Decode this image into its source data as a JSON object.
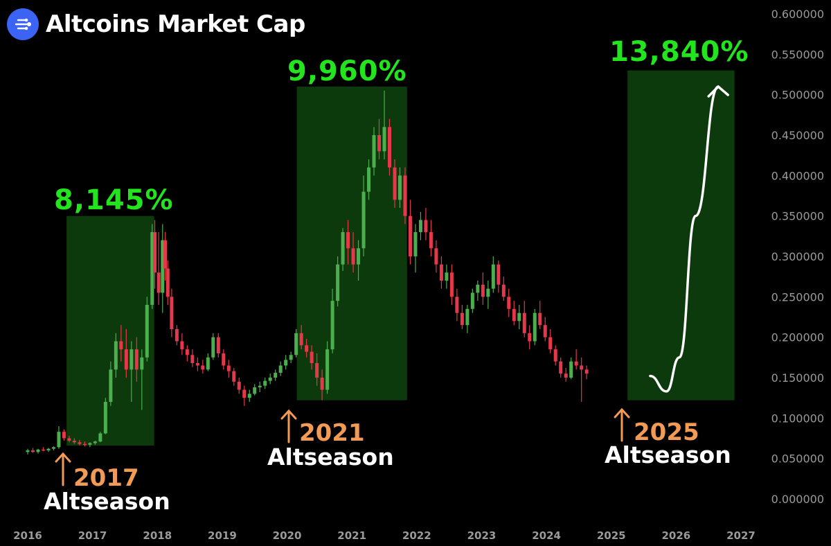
{
  "chart_data": {
    "type": "candlestick",
    "title": "Altcoins Market Cap",
    "ylim": [
      0.0,
      0.6
    ],
    "y_ticks": [
      "0.600000",
      "0.550000",
      "0.500000",
      "0.450000",
      "0.400000",
      "0.350000",
      "0.300000",
      "0.250000",
      "0.200000",
      "0.150000",
      "0.100000",
      "0.050000",
      "0.000000"
    ],
    "x_ticks": [
      "2016",
      "2017",
      "2018",
      "2019",
      "2020",
      "2021",
      "2022",
      "2023",
      "2024",
      "2025",
      "2026",
      "2027"
    ],
    "grid": false,
    "colors": {
      "up": "#4cae4f",
      "down": "#e5384a",
      "highlight": "#0c3a0c",
      "gain": "#22e51e",
      "year": "#f39a54",
      "label": "#ffffff",
      "axis": "#9a9a9a"
    },
    "highlight_periods": [
      {
        "start": 2016.6,
        "end": 2017.95,
        "low": 0.066,
        "high": 0.35
      },
      {
        "start": 2020.15,
        "end": 2021.85,
        "low": 0.122,
        "high": 0.51
      },
      {
        "start": 2025.25,
        "end": 2026.9,
        "low": 0.122,
        "high": 0.53
      }
    ],
    "annotations": [
      {
        "gain": "8,145%",
        "year": "2017",
        "label": "Altseason"
      },
      {
        "gain": "9,960%",
        "year": "2021",
        "label": "Altseason"
      },
      {
        "gain": "13,840%",
        "year": "2025",
        "label": "Altseason"
      }
    ],
    "projection": [
      [
        2025.6,
        0.152
      ],
      [
        2025.85,
        0.133
      ],
      [
        2026.05,
        0.175
      ],
      [
        2026.3,
        0.35
      ],
      [
        2026.65,
        0.51
      ]
    ],
    "candles": [
      [
        2016.0,
        0.058,
        0.062,
        0.055,
        0.06
      ],
      [
        2016.08,
        0.06,
        0.063,
        0.057,
        0.058
      ],
      [
        2016.16,
        0.058,
        0.062,
        0.056,
        0.061
      ],
      [
        2016.24,
        0.061,
        0.064,
        0.059,
        0.06
      ],
      [
        2016.32,
        0.06,
        0.063,
        0.058,
        0.062
      ],
      [
        2016.4,
        0.062,
        0.065,
        0.06,
        0.064
      ],
      [
        2016.48,
        0.064,
        0.09,
        0.062,
        0.083
      ],
      [
        2016.56,
        0.083,
        0.086,
        0.072,
        0.075
      ],
      [
        2016.64,
        0.075,
        0.078,
        0.07,
        0.072
      ],
      [
        2016.72,
        0.072,
        0.075,
        0.068,
        0.07
      ],
      [
        2016.8,
        0.07,
        0.073,
        0.066,
        0.068
      ],
      [
        2016.88,
        0.068,
        0.071,
        0.065,
        0.067
      ],
      [
        2016.96,
        0.067,
        0.07,
        0.064,
        0.069
      ],
      [
        2017.04,
        0.069,
        0.072,
        0.067,
        0.071
      ],
      [
        2017.12,
        0.071,
        0.083,
        0.07,
        0.081
      ],
      [
        2017.2,
        0.081,
        0.125,
        0.08,
        0.12
      ],
      [
        2017.28,
        0.12,
        0.17,
        0.115,
        0.16
      ],
      [
        2017.36,
        0.16,
        0.205,
        0.15,
        0.195
      ],
      [
        2017.44,
        0.195,
        0.215,
        0.17,
        0.185
      ],
      [
        2017.52,
        0.185,
        0.21,
        0.15,
        0.16
      ],
      [
        2017.6,
        0.16,
        0.195,
        0.12,
        0.185
      ],
      [
        2017.68,
        0.185,
        0.2,
        0.145,
        0.16
      ],
      [
        2017.76,
        0.16,
        0.185,
        0.11,
        0.175
      ],
      [
        2017.84,
        0.175,
        0.25,
        0.17,
        0.24
      ],
      [
        2017.92,
        0.24,
        0.34,
        0.235,
        0.33
      ],
      [
        2017.96,
        0.33,
        0.345,
        0.26,
        0.28
      ],
      [
        2018.02,
        0.28,
        0.33,
        0.24,
        0.255
      ],
      [
        2018.08,
        0.255,
        0.34,
        0.23,
        0.32
      ],
      [
        2018.12,
        0.32,
        0.33,
        0.27,
        0.285
      ],
      [
        2018.16,
        0.285,
        0.295,
        0.24,
        0.25
      ],
      [
        2018.22,
        0.25,
        0.26,
        0.2,
        0.21
      ],
      [
        2018.3,
        0.21,
        0.215,
        0.19,
        0.195
      ],
      [
        2018.38,
        0.195,
        0.205,
        0.178,
        0.185
      ],
      [
        2018.46,
        0.185,
        0.19,
        0.17,
        0.178
      ],
      [
        2018.54,
        0.178,
        0.185,
        0.163,
        0.168
      ],
      [
        2018.62,
        0.168,
        0.175,
        0.158,
        0.165
      ],
      [
        2018.7,
        0.165,
        0.172,
        0.155,
        0.16
      ],
      [
        2018.78,
        0.16,
        0.18,
        0.158,
        0.175
      ],
      [
        2018.86,
        0.175,
        0.205,
        0.172,
        0.2
      ],
      [
        2018.94,
        0.2,
        0.205,
        0.175,
        0.18
      ],
      [
        2019.02,
        0.18,
        0.185,
        0.16,
        0.165
      ],
      [
        2019.1,
        0.165,
        0.172,
        0.15,
        0.158
      ],
      [
        2019.18,
        0.158,
        0.162,
        0.14,
        0.145
      ],
      [
        2019.26,
        0.145,
        0.15,
        0.13,
        0.135
      ],
      [
        2019.34,
        0.135,
        0.14,
        0.115,
        0.125
      ],
      [
        2019.42,
        0.125,
        0.135,
        0.12,
        0.13
      ],
      [
        2019.5,
        0.13,
        0.142,
        0.128,
        0.138
      ],
      [
        2019.58,
        0.138,
        0.145,
        0.132,
        0.14
      ],
      [
        2019.66,
        0.14,
        0.15,
        0.136,
        0.146
      ],
      [
        2019.74,
        0.146,
        0.155,
        0.142,
        0.15
      ],
      [
        2019.82,
        0.15,
        0.16,
        0.146,
        0.156
      ],
      [
        2019.9,
        0.156,
        0.17,
        0.152,
        0.165
      ],
      [
        2019.98,
        0.165,
        0.178,
        0.16,
        0.172
      ],
      [
        2020.06,
        0.172,
        0.182,
        0.168,
        0.178
      ],
      [
        2020.14,
        0.178,
        0.21,
        0.175,
        0.205
      ],
      [
        2020.22,
        0.205,
        0.215,
        0.185,
        0.19
      ],
      [
        2020.3,
        0.19,
        0.198,
        0.175,
        0.182
      ],
      [
        2020.38,
        0.182,
        0.19,
        0.16,
        0.168
      ],
      [
        2020.46,
        0.168,
        0.18,
        0.14,
        0.15
      ],
      [
        2020.54,
        0.15,
        0.16,
        0.122,
        0.135
      ],
      [
        2020.62,
        0.135,
        0.195,
        0.13,
        0.185
      ],
      [
        2020.7,
        0.185,
        0.26,
        0.18,
        0.245
      ],
      [
        2020.78,
        0.245,
        0.3,
        0.238,
        0.29
      ],
      [
        2020.86,
        0.29,
        0.335,
        0.282,
        0.33
      ],
      [
        2020.94,
        0.33,
        0.345,
        0.29,
        0.31
      ],
      [
        2021.02,
        0.31,
        0.33,
        0.28,
        0.29
      ],
      [
        2021.1,
        0.29,
        0.32,
        0.27,
        0.31
      ],
      [
        2021.18,
        0.31,
        0.4,
        0.3,
        0.38
      ],
      [
        2021.26,
        0.38,
        0.42,
        0.37,
        0.41
      ],
      [
        2021.34,
        0.41,
        0.46,
        0.4,
        0.45
      ],
      [
        2021.42,
        0.45,
        0.47,
        0.42,
        0.43
      ],
      [
        2021.5,
        0.43,
        0.505,
        0.42,
        0.46
      ],
      [
        2021.58,
        0.46,
        0.47,
        0.4,
        0.41
      ],
      [
        2021.66,
        0.41,
        0.42,
        0.36,
        0.37
      ],
      [
        2021.74,
        0.37,
        0.41,
        0.36,
        0.4
      ],
      [
        2021.82,
        0.4,
        0.41,
        0.34,
        0.35
      ],
      [
        2021.9,
        0.35,
        0.37,
        0.29,
        0.3
      ],
      [
        2021.98,
        0.3,
        0.34,
        0.28,
        0.33
      ],
      [
        2022.06,
        0.33,
        0.355,
        0.32,
        0.345
      ],
      [
        2022.14,
        0.345,
        0.36,
        0.32,
        0.33
      ],
      [
        2022.22,
        0.33,
        0.345,
        0.3,
        0.31
      ],
      [
        2022.3,
        0.31,
        0.32,
        0.28,
        0.29
      ],
      [
        2022.38,
        0.29,
        0.3,
        0.26,
        0.27
      ],
      [
        2022.46,
        0.27,
        0.29,
        0.26,
        0.28
      ],
      [
        2022.54,
        0.28,
        0.29,
        0.24,
        0.25
      ],
      [
        2022.62,
        0.25,
        0.26,
        0.22,
        0.23
      ],
      [
        2022.7,
        0.23,
        0.24,
        0.21,
        0.215
      ],
      [
        2022.78,
        0.215,
        0.24,
        0.205,
        0.235
      ],
      [
        2022.86,
        0.235,
        0.26,
        0.23,
        0.255
      ],
      [
        2022.94,
        0.255,
        0.27,
        0.245,
        0.265
      ],
      [
        2023.02,
        0.265,
        0.28,
        0.24,
        0.25
      ],
      [
        2023.1,
        0.25,
        0.27,
        0.235,
        0.26
      ],
      [
        2023.18,
        0.26,
        0.3,
        0.255,
        0.29
      ],
      [
        2023.26,
        0.29,
        0.295,
        0.255,
        0.265
      ],
      [
        2023.34,
        0.265,
        0.275,
        0.245,
        0.25
      ],
      [
        2023.42,
        0.25,
        0.26,
        0.225,
        0.235
      ],
      [
        2023.5,
        0.235,
        0.245,
        0.215,
        0.22
      ],
      [
        2023.58,
        0.22,
        0.24,
        0.21,
        0.23
      ],
      [
        2023.66,
        0.23,
        0.245,
        0.2,
        0.205
      ],
      [
        2023.74,
        0.205,
        0.215,
        0.185,
        0.195
      ],
      [
        2023.82,
        0.195,
        0.235,
        0.19,
        0.23
      ],
      [
        2023.9,
        0.23,
        0.245,
        0.21,
        0.215
      ],
      [
        2023.98,
        0.215,
        0.225,
        0.195,
        0.2
      ],
      [
        2024.06,
        0.2,
        0.21,
        0.18,
        0.185
      ],
      [
        2024.14,
        0.185,
        0.19,
        0.165,
        0.17
      ],
      [
        2024.22,
        0.17,
        0.175,
        0.15,
        0.155
      ],
      [
        2024.3,
        0.155,
        0.162,
        0.145,
        0.15
      ],
      [
        2024.38,
        0.15,
        0.175,
        0.148,
        0.17
      ],
      [
        2024.46,
        0.17,
        0.185,
        0.16,
        0.165
      ],
      [
        2024.54,
        0.165,
        0.175,
        0.12,
        0.16
      ],
      [
        2024.62,
        0.16,
        0.165,
        0.148,
        0.155
      ]
    ]
  }
}
